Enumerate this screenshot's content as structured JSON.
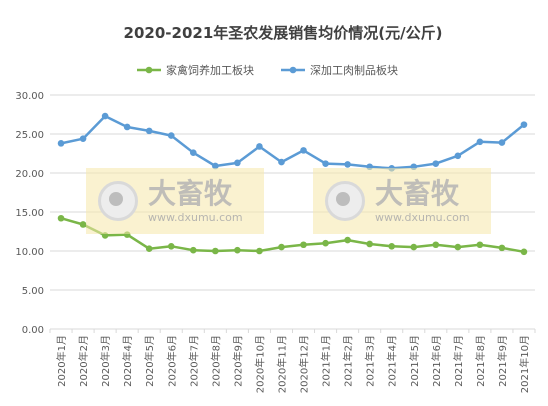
{
  "chart_data": {
    "type": "line",
    "title": "2020-2021年圣农发展销售均价情况(元/公斤)",
    "xlabel": "",
    "ylabel": "",
    "ylim": [
      0,
      30
    ],
    "yticks": [
      "0.00",
      "5.00",
      "10.00",
      "15.00",
      "20.00",
      "25.00",
      "30.00"
    ],
    "grid": true,
    "legend_position": "top",
    "categories": [
      "2020年1月",
      "2020年2月",
      "2020年3月",
      "2020年4月",
      "2020年5月",
      "2020年6月",
      "2020年7月",
      "2020年8月",
      "2020年9月",
      "2020年10月",
      "2020年11月",
      "2020年12月",
      "2021年1月",
      "2021年2月",
      "2021年3月",
      "2021年4月",
      "2021年5月",
      "2021年6月",
      "2021年7月",
      "2021年8月",
      "2021年9月",
      "2021年10月"
    ],
    "series": [
      {
        "name": "家禽饲养加工板块",
        "color": "#7ab648",
        "values": [
          14.2,
          13.4,
          12.0,
          12.1,
          10.3,
          10.6,
          10.1,
          10.0,
          10.1,
          10.0,
          10.5,
          10.8,
          11.0,
          11.4,
          10.9,
          10.6,
          10.5,
          10.8,
          10.5,
          10.8,
          10.4,
          9.9
        ]
      },
      {
        "name": "深加工肉制品板块",
        "color": "#5b9bd5",
        "values": [
          23.8,
          24.4,
          27.3,
          25.9,
          25.4,
          24.8,
          22.6,
          20.9,
          21.3,
          23.4,
          21.4,
          22.9,
          21.2,
          21.1,
          20.8,
          20.6,
          20.8,
          21.2,
          22.2,
          24.0,
          23.9,
          26.2
        ]
      }
    ]
  },
  "watermark": {
    "brand": "大畜牧",
    "url": "www.dxumu.com"
  }
}
